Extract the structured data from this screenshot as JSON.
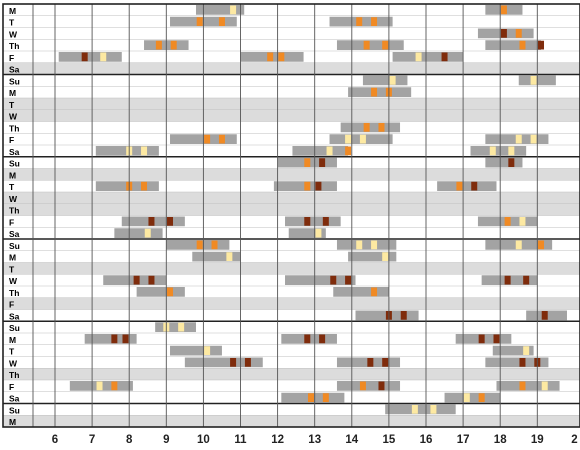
{
  "chart_data": {
    "type": "gantt",
    "x_ticks": [
      "6",
      "7",
      "8",
      "9",
      "10",
      "11",
      "12",
      "13",
      "14",
      "15",
      "16",
      "17",
      "18",
      "19",
      "2"
    ],
    "xlim": [
      5.5,
      20
    ],
    "grid": true,
    "colors": {
      "gray_bar": "#a3a3a3",
      "shaded_row": "#dcdcdc",
      "white_row": "#ffffff",
      "grid_line": "#555555",
      "week_line": "#222222",
      "light_yellow": "#fde9a2",
      "orange": "#f08a24",
      "dark_red": "#7f2c0c"
    },
    "rows": [
      {
        "label": "M",
        "shaded": false,
        "bars": [
          [
            9.8,
            11.1
          ],
          [
            17.6,
            18.6
          ]
        ],
        "marks": [
          [
            10.8,
            "light_yellow"
          ],
          [
            18.1,
            "orange"
          ]
        ]
      },
      {
        "label": "T",
        "shaded": false,
        "bars": [
          [
            9.1,
            10.9
          ],
          [
            13.4,
            15.1
          ]
        ],
        "marks": [
          [
            9.9,
            "orange"
          ],
          [
            10.5,
            "orange"
          ],
          [
            14.2,
            "orange"
          ],
          [
            14.6,
            "orange"
          ]
        ]
      },
      {
        "label": "W",
        "shaded": false,
        "bars": [
          [
            17.4,
            18.9
          ]
        ],
        "marks": [
          [
            18.1,
            "dark_red"
          ],
          [
            18.5,
            "orange"
          ]
        ]
      },
      {
        "label": "Th",
        "shaded": false,
        "bars": [
          [
            8.4,
            9.6
          ],
          [
            13.6,
            15.4
          ],
          [
            17.6,
            19.1
          ]
        ],
        "marks": [
          [
            8.8,
            "orange"
          ],
          [
            9.2,
            "orange"
          ],
          [
            14.4,
            "orange"
          ],
          [
            14.9,
            "orange"
          ],
          [
            18.6,
            "orange"
          ],
          [
            19.1,
            "dark_red"
          ]
        ]
      },
      {
        "label": "F",
        "shaded": false,
        "bars": [
          [
            6.1,
            7.8
          ],
          [
            11.0,
            12.7
          ],
          [
            15.1,
            17.0
          ]
        ],
        "marks": [
          [
            6.8,
            "dark_red"
          ],
          [
            7.3,
            "light_yellow"
          ],
          [
            11.8,
            "orange"
          ],
          [
            12.1,
            "orange"
          ],
          [
            15.8,
            "light_yellow"
          ],
          [
            16.5,
            "dark_red"
          ]
        ]
      },
      {
        "label": "Sa",
        "shaded": true,
        "bars": [],
        "marks": []
      },
      {
        "label": "Su",
        "shaded": false,
        "bars": [
          [
            14.3,
            15.5
          ],
          [
            18.5,
            19.5
          ]
        ],
        "marks": [
          [
            15.1,
            "light_yellow"
          ],
          [
            18.9,
            "light_yellow"
          ]
        ]
      },
      {
        "label": "M",
        "shaded": false,
        "bars": [
          [
            13.9,
            15.6
          ]
        ],
        "marks": [
          [
            14.6,
            "orange"
          ],
          [
            15.0,
            "orange"
          ]
        ]
      },
      {
        "label": "T",
        "shaded": true,
        "bars": [],
        "marks": []
      },
      {
        "label": "W",
        "shaded": true,
        "bars": [],
        "marks": []
      },
      {
        "label": "Th",
        "shaded": false,
        "bars": [
          [
            13.7,
            15.3
          ]
        ],
        "marks": [
          [
            14.4,
            "orange"
          ],
          [
            14.8,
            "orange"
          ]
        ]
      },
      {
        "label": "F",
        "shaded": false,
        "bars": [
          [
            9.1,
            10.9
          ],
          [
            13.4,
            15.1
          ],
          [
            17.6,
            19.3
          ]
        ],
        "marks": [
          [
            10.1,
            "orange"
          ],
          [
            10.5,
            "orange"
          ],
          [
            13.9,
            "light_yellow"
          ],
          [
            14.3,
            "light_yellow"
          ],
          [
            18.5,
            "light_yellow"
          ],
          [
            18.9,
            "light_yellow"
          ]
        ]
      },
      {
        "label": "Sa",
        "shaded": false,
        "bars": [
          [
            7.1,
            8.8
          ],
          [
            12.4,
            13.9
          ],
          [
            17.2,
            18.7
          ]
        ],
        "marks": [
          [
            8.0,
            "light_yellow"
          ],
          [
            8.4,
            "light_yellow"
          ],
          [
            13.4,
            "light_yellow"
          ],
          [
            13.9,
            "orange"
          ],
          [
            17.8,
            "light_yellow"
          ],
          [
            18.3,
            "light_yellow"
          ]
        ]
      },
      {
        "label": "Su",
        "shaded": false,
        "bars": [
          [
            12.0,
            13.6
          ],
          [
            17.6,
            18.6
          ]
        ],
        "marks": [
          [
            12.8,
            "orange"
          ],
          [
            13.2,
            "dark_red"
          ],
          [
            18.3,
            "dark_red"
          ]
        ]
      },
      {
        "label": "M",
        "shaded": true,
        "bars": [],
        "marks": []
      },
      {
        "label": "T",
        "shaded": false,
        "bars": [
          [
            7.1,
            8.8
          ],
          [
            11.9,
            13.6
          ],
          [
            16.3,
            17.9
          ]
        ],
        "marks": [
          [
            8.0,
            "orange"
          ],
          [
            8.4,
            "orange"
          ],
          [
            12.8,
            "orange"
          ],
          [
            13.1,
            "dark_red"
          ],
          [
            16.9,
            "orange"
          ],
          [
            17.3,
            "dark_red"
          ]
        ]
      },
      {
        "label": "W",
        "shaded": true,
        "bars": [],
        "marks": []
      },
      {
        "label": "Th",
        "shaded": true,
        "bars": [],
        "marks": []
      },
      {
        "label": "F",
        "shaded": false,
        "bars": [
          [
            7.8,
            9.5
          ],
          [
            12.2,
            13.7
          ],
          [
            17.4,
            19.0
          ]
        ],
        "marks": [
          [
            8.6,
            "dark_red"
          ],
          [
            9.1,
            "dark_red"
          ],
          [
            12.8,
            "dark_red"
          ],
          [
            13.3,
            "dark_red"
          ],
          [
            18.2,
            "orange"
          ],
          [
            18.6,
            "light_yellow"
          ]
        ]
      },
      {
        "label": "Sa",
        "shaded": false,
        "bars": [
          [
            7.6,
            8.9
          ],
          [
            12.3,
            13.3
          ]
        ],
        "marks": [
          [
            8.5,
            "light_yellow"
          ],
          [
            13.1,
            "light_yellow"
          ]
        ]
      },
      {
        "label": "Su",
        "shaded": false,
        "bars": [
          [
            9.0,
            10.7
          ],
          [
            13.6,
            15.2
          ],
          [
            17.6,
            19.4
          ]
        ],
        "marks": [
          [
            9.9,
            "orange"
          ],
          [
            10.3,
            "orange"
          ],
          [
            14.2,
            "light_yellow"
          ],
          [
            14.6,
            "light_yellow"
          ],
          [
            18.5,
            "light_yellow"
          ],
          [
            19.1,
            "orange"
          ]
        ]
      },
      {
        "label": "M",
        "shaded": false,
        "bars": [
          [
            9.7,
            11.0
          ],
          [
            13.9,
            15.2
          ]
        ],
        "marks": [
          [
            10.7,
            "light_yellow"
          ],
          [
            14.9,
            "light_yellow"
          ]
        ]
      },
      {
        "label": "T",
        "shaded": true,
        "bars": [],
        "marks": []
      },
      {
        "label": "W",
        "shaded": false,
        "bars": [
          [
            7.3,
            9.0
          ],
          [
            12.2,
            14.1
          ],
          [
            17.5,
            19.0
          ]
        ],
        "marks": [
          [
            8.2,
            "dark_red"
          ],
          [
            8.6,
            "dark_red"
          ],
          [
            13.5,
            "dark_red"
          ],
          [
            13.9,
            "dark_red"
          ],
          [
            18.2,
            "dark_red"
          ],
          [
            18.7,
            "dark_red"
          ]
        ]
      },
      {
        "label": "Th",
        "shaded": false,
        "bars": [
          [
            8.2,
            9.5
          ],
          [
            13.5,
            15.0
          ]
        ],
        "marks": [
          [
            9.1,
            "orange"
          ],
          [
            14.6,
            "orange"
          ]
        ]
      },
      {
        "label": "F",
        "shaded": true,
        "bars": [],
        "marks": []
      },
      {
        "label": "Sa",
        "shaded": false,
        "bars": [
          [
            14.1,
            15.8
          ],
          [
            18.7,
            19.8
          ]
        ],
        "marks": [
          [
            15.0,
            "dark_red"
          ],
          [
            15.4,
            "dark_red"
          ],
          [
            19.2,
            "dark_red"
          ]
        ]
      },
      {
        "label": "Su",
        "shaded": false,
        "bars": [
          [
            8.7,
            9.8
          ]
        ],
        "marks": [
          [
            9.0,
            "light_yellow"
          ],
          [
            9.4,
            "light_yellow"
          ]
        ]
      },
      {
        "label": "M",
        "shaded": false,
        "bars": [
          [
            6.8,
            8.2
          ],
          [
            12.1,
            13.6
          ],
          [
            16.8,
            18.3
          ]
        ],
        "marks": [
          [
            7.6,
            "dark_red"
          ],
          [
            7.9,
            "dark_red"
          ],
          [
            12.8,
            "dark_red"
          ],
          [
            13.2,
            "dark_red"
          ],
          [
            17.5,
            "dark_red"
          ],
          [
            17.9,
            "dark_red"
          ]
        ]
      },
      {
        "label": "T",
        "shaded": false,
        "bars": [
          [
            9.1,
            10.5
          ],
          [
            17.8,
            18.9
          ]
        ],
        "marks": [
          [
            10.1,
            "light_yellow"
          ],
          [
            18.7,
            "light_yellow"
          ]
        ]
      },
      {
        "label": "W",
        "shaded": false,
        "bars": [
          [
            9.5,
            11.6
          ],
          [
            13.6,
            15.3
          ],
          [
            17.6,
            19.3
          ]
        ],
        "marks": [
          [
            10.8,
            "dark_red"
          ],
          [
            11.2,
            "dark_red"
          ],
          [
            14.5,
            "dark_red"
          ],
          [
            14.9,
            "dark_red"
          ],
          [
            18.6,
            "dark_red"
          ],
          [
            19.0,
            "dark_red"
          ]
        ]
      },
      {
        "label": "Th",
        "shaded": true,
        "bars": [],
        "marks": []
      },
      {
        "label": "F",
        "shaded": false,
        "bars": [
          [
            6.4,
            8.1
          ],
          [
            13.6,
            15.3
          ],
          [
            17.9,
            19.6
          ]
        ],
        "marks": [
          [
            7.2,
            "light_yellow"
          ],
          [
            7.6,
            "orange"
          ],
          [
            14.3,
            "orange"
          ],
          [
            14.8,
            "dark_red"
          ],
          [
            18.6,
            "orange"
          ],
          [
            19.2,
            "light_yellow"
          ]
        ]
      },
      {
        "label": "Sa",
        "shaded": false,
        "bars": [
          [
            12.1,
            13.8
          ],
          [
            16.5,
            18.0
          ]
        ],
        "marks": [
          [
            12.9,
            "orange"
          ],
          [
            13.3,
            "orange"
          ],
          [
            17.1,
            "light_yellow"
          ],
          [
            17.5,
            "orange"
          ]
        ]
      },
      {
        "label": "Su",
        "shaded": false,
        "bars": [
          [
            14.9,
            16.8
          ]
        ],
        "marks": [
          [
            15.7,
            "light_yellow"
          ],
          [
            16.2,
            "light_yellow"
          ]
        ]
      },
      {
        "label": "M",
        "shaded": true,
        "bars": [],
        "marks": []
      }
    ]
  }
}
